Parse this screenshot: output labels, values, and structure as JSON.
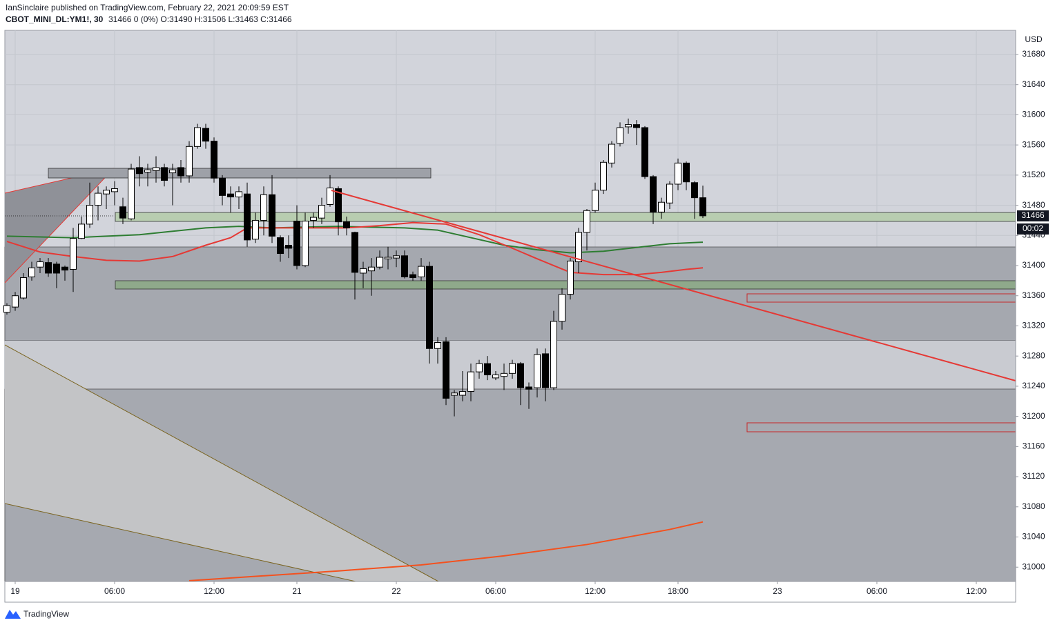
{
  "header": {
    "publisher": "IanSinclaire published on TradingView.com, February 22, 2021 20:09:59 EST",
    "symbol": "CBOT_MINI_DL:YM1!, 30",
    "quote": "31466 0 (0%) O:31490 H:31506 L:31463 C:31466"
  },
  "chart_data": {
    "type": "candlestick",
    "currency": "USD",
    "countdown": "00:02",
    "x": [
      0,
      1,
      2,
      3,
      4,
      5,
      6,
      7,
      8,
      9,
      10,
      11,
      12,
      13,
      14,
      15,
      16,
      17,
      18,
      19,
      20,
      21,
      22,
      23,
      24,
      25,
      26,
      27,
      28,
      29,
      30,
      31,
      32,
      33,
      34,
      35,
      36,
      37,
      38,
      39,
      40,
      41,
      42,
      43,
      44,
      45,
      46,
      47,
      48,
      49,
      50,
      51,
      52,
      53,
      54,
      55,
      56,
      57,
      58,
      59,
      60,
      61,
      62,
      63,
      64,
      65,
      66,
      67,
      68,
      69,
      70,
      71,
      72,
      73,
      74,
      75,
      76,
      77,
      78,
      79,
      80,
      81,
      82,
      83,
      84
    ],
    "open": [
      31338,
      31345,
      31357,
      31385,
      31398,
      31404,
      31402,
      31398,
      31395,
      31436,
      31455,
      31480,
      31495,
      31498,
      31478,
      31462,
      31530,
      31524,
      31526,
      31530,
      31523,
      31530,
      31519,
      31558,
      31582,
      31565,
      31516,
      31495,
      31491,
      31495,
      31435,
      31460,
      31494,
      31437,
      31427,
      31459,
      31400,
      31460,
      31463,
      31481,
      31502,
      31458,
      31444,
      31390,
      31393,
      31398,
      31409,
      31410,
      31413,
      31388,
      31385,
      31399,
      31290,
      31299,
      31228,
      31228,
      31233,
      31259,
      31270,
      31251,
      31253,
      31257,
      31270,
      31239,
      31238,
      31283,
      31238,
      31326,
      31362,
      31405,
      31444,
      31473,
      31500,
      31536,
      31562,
      31584,
      31587,
      31583,
      31518,
      31471,
      31483,
      31508,
      31536,
      31510,
      31490
    ],
    "high": [
      31350,
      31365,
      31390,
      31405,
      31410,
      31410,
      31405,
      31400,
      31450,
      31465,
      31510,
      31505,
      31505,
      31512,
      31490,
      31535,
      31545,
      31535,
      31545,
      31535,
      31535,
      31540,
      31565,
      31588,
      31588,
      31570,
      31520,
      31505,
      31505,
      31510,
      31470,
      31505,
      31520,
      31440,
      31440,
      31480,
      31470,
      31470,
      31490,
      31520,
      31505,
      31465,
      31445,
      31405,
      31410,
      31420,
      31425,
      31420,
      31420,
      31392,
      31410,
      31405,
      31305,
      31305,
      31235,
      31260,
      31270,
      31275,
      31280,
      31260,
      31270,
      31275,
      31272,
      31245,
      31290,
      31290,
      31340,
      31370,
      31410,
      31450,
      31475,
      31510,
      31540,
      31565,
      31590,
      31595,
      31593,
      31585,
      31520,
      31490,
      31512,
      31542,
      31538,
      31512,
      31506
    ],
    "low": [
      31335,
      31340,
      31355,
      31380,
      31390,
      31385,
      31370,
      31380,
      31365,
      31435,
      31450,
      31460,
      31475,
      31480,
      31455,
      31460,
      31505,
      31505,
      31510,
      31505,
      31480,
      31510,
      31510,
      31555,
      31555,
      31510,
      31480,
      31470,
      31475,
      31425,
      31430,
      31440,
      31430,
      31405,
      31410,
      31395,
      31398,
      31450,
      31455,
      31478,
      31440,
      31440,
      31355,
      31370,
      31360,
      31395,
      31395,
      31398,
      31383,
      31380,
      31380,
      31270,
      31270,
      31215,
      31200,
      31220,
      31220,
      31250,
      31248,
      31248,
      31235,
      31250,
      31215,
      31210,
      31225,
      31220,
      31235,
      31315,
      31355,
      31390,
      31420,
      31470,
      31495,
      31530,
      31558,
      31575,
      31560,
      31515,
      31455,
      31462,
      31475,
      31500,
      31500,
      31462,
      31463
    ],
    "close": [
      31347,
      31360,
      31384,
      31397,
      31405,
      31390,
      31390,
      31394,
      31436,
      31455,
      31480,
      31496,
      31500,
      31502,
      31463,
      31528,
      31522,
      31527,
      31530,
      31513,
      31527,
      31519,
      31558,
      31583,
      31565,
      31516,
      31493,
      31491,
      31498,
      31434,
      31460,
      31494,
      31439,
      31416,
      31423,
      31400,
      31459,
      31464,
      31480,
      31503,
      31458,
      31450,
      31391,
      31396,
      31398,
      31411,
      31411,
      31413,
      31385,
      31384,
      31399,
      31290,
      31298,
      31224,
      31231,
      31233,
      31259,
      31270,
      31255,
      31255,
      31257,
      31270,
      31238,
      31236,
      31282,
      31238,
      31326,
      31362,
      31406,
      31444,
      31473,
      31500,
      31537,
      31561,
      31583,
      31587,
      31583,
      31518,
      31471,
      31484,
      31508,
      31536,
      31511,
      31490,
      31466
    ],
    "up_color": "#ffffff",
    "down_color": "#000000",
    "overlays": [
      {
        "color": "#2e7d32",
        "x": [
          0,
          8,
          16,
          24,
          28,
          32,
          40,
          48,
          52,
          56,
          60,
          64,
          68,
          72,
          76,
          80,
          84
        ],
        "values": [
          31439,
          31437,
          31441,
          31450,
          31452,
          31450,
          31452,
          31450,
          31447,
          31437,
          31427,
          31421,
          31417,
          31419,
          31424,
          31429,
          31431
        ]
      },
      {
        "color": "#e53935",
        "x": [
          0,
          4,
          8,
          12,
          16,
          20,
          24,
          27,
          29,
          33,
          37,
          41,
          45,
          49,
          53,
          57,
          61,
          64,
          66,
          68,
          72,
          76,
          79,
          82,
          84
        ],
        "values": [
          31432,
          31418,
          31412,
          31407,
          31406,
          31412,
          31427,
          31437,
          31450,
          31450,
          31450,
          31450,
          31453,
          31457,
          31455,
          31441,
          31423,
          31409,
          31400,
          31391,
          31388,
          31388,
          31391,
          31395,
          31397
        ]
      },
      {
        "color": "#f4511e",
        "x": [
          22,
          40,
          50,
          60,
          70,
          80,
          84
        ],
        "values": [
          30982,
          30995,
          31003,
          31015,
          31030,
          31050,
          31060
        ]
      }
    ],
    "xlim": [
      -0.25,
      121.75
    ],
    "ylim": [
      30981,
      31712
    ],
    "xticks": [
      {
        "value": 1,
        "label": "19"
      },
      {
        "value": 13,
        "label": "06:00"
      },
      {
        "value": 25,
        "label": "12:00"
      },
      {
        "value": 35,
        "label": "21"
      },
      {
        "value": 47,
        "label": "22"
      },
      {
        "value": 59,
        "label": "06:00"
      },
      {
        "value": 71,
        "label": "12:00"
      },
      {
        "value": 81,
        "label": "18:00"
      },
      {
        "value": 93,
        "label": "23"
      },
      {
        "value": 105,
        "label": "06:00"
      },
      {
        "value": 117,
        "label": "12:00"
      }
    ],
    "yticks": [
      31000,
      31040,
      31080,
      31120,
      31160,
      31200,
      31240,
      31280,
      31320,
      31360,
      31400,
      31440,
      31480,
      31520,
      31560,
      31600,
      31640,
      31680
    ],
    "grid": true
  },
  "footer": {
    "brand": "TradingView"
  }
}
